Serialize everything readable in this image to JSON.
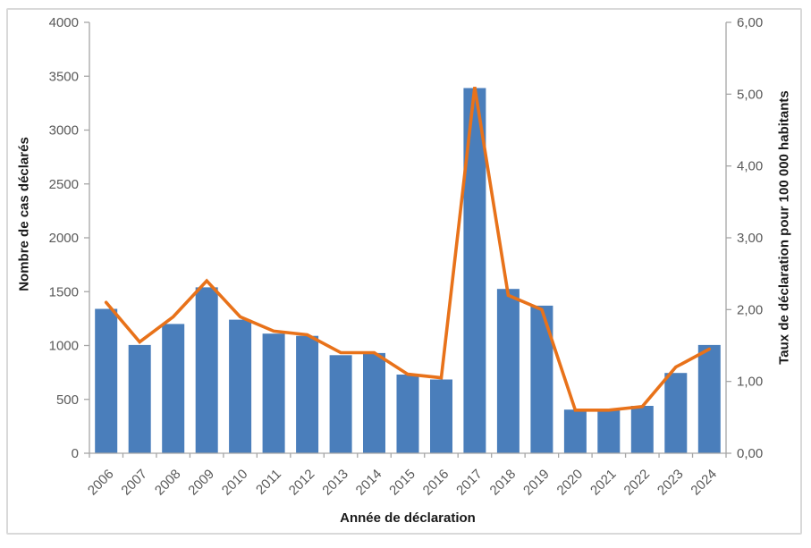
{
  "chart_data": {
    "type": "bar+line-combo",
    "title": "",
    "categories": [
      "2006",
      "2007",
      "2008",
      "2009",
      "2010",
      "2011",
      "2012",
      "2013",
      "2014",
      "2015",
      "2016",
      "2017",
      "2018",
      "2019",
      "2020",
      "2021",
      "2022",
      "2023",
      "2024"
    ],
    "series": [
      {
        "name": "Nombre de cas déclarés",
        "type": "bar",
        "axis": "left",
        "values": [
          1340,
          1005,
          1200,
          1540,
          1240,
          1110,
          1090,
          910,
          930,
          730,
          685,
          3390,
          1525,
          1370,
          405,
          400,
          440,
          745,
          1005
        ]
      },
      {
        "name": "Taux de déclaration pour 100 000 habitants",
        "type": "line",
        "axis": "right",
        "values": [
          2.1,
          1.55,
          1.9,
          2.4,
          1.9,
          1.7,
          1.65,
          1.4,
          1.4,
          1.1,
          1.05,
          5.1,
          2.2,
          2.0,
          0.6,
          0.6,
          0.65,
          1.2,
          1.45
        ]
      }
    ],
    "xlabel": "Année de déclaration",
    "ylabel_left": "Nombre de cas déclarés",
    "ylabel_right": "Taux de déclaration pour 100 000 habitants",
    "ylim_left": [
      0,
      4000
    ],
    "ylim_right": [
      0,
      6
    ],
    "left_axis_ticks": [
      "0",
      "500",
      "1000",
      "1500",
      "2000",
      "2500",
      "3000",
      "3500",
      "4000"
    ],
    "right_axis_ticks": [
      "0,00",
      "1,00",
      "2,00",
      "3,00",
      "4,00",
      "5,00",
      "6,00"
    ],
    "grid": false,
    "legend": "none",
    "x_tick_label_rotation_deg": -45
  },
  "colors": {
    "bar": "#4a7ebb",
    "line": "#e8721a",
    "axis": "#a6a6a6",
    "tick_label": "#595959",
    "axis_title": "#1a1a1a",
    "frame_border": "#d9d9d9"
  }
}
